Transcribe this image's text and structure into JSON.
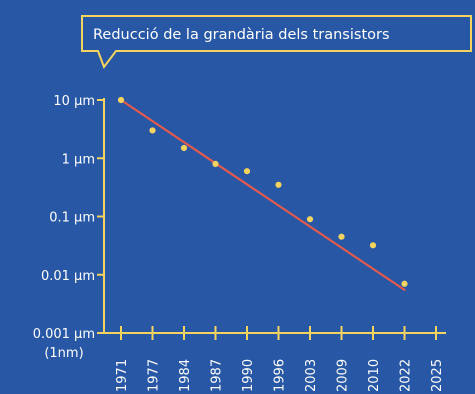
{
  "chart_data": {
    "type": "scatter",
    "title": "Reducció de la grandària dels transistors",
    "xlabel": "",
    "ylabel": "",
    "x_categories": [
      "1971",
      "1977",
      "1984",
      "1987",
      "1990",
      "1996",
      "2003",
      "2009",
      "2010",
      "2022",
      "2025"
    ],
    "y_ticks": [
      {
        "label": "10 µm",
        "value": 10
      },
      {
        "label": "1 µm",
        "value": 1
      },
      {
        "label": "0.1 µm",
        "value": 0.1
      },
      {
        "label": "0.01 µm",
        "value": 0.01
      },
      {
        "label": "0.001 µm",
        "sublabel": "(1nm)",
        "value": 0.001
      }
    ],
    "yscale": "log",
    "ylim": [
      0.001,
      10
    ],
    "series": [
      {
        "type": "scatter",
        "points": [
          {
            "x": "1971",
            "y": 10
          },
          {
            "x": "1977",
            "y": 3
          },
          {
            "x": "1984",
            "y": 1.5
          },
          {
            "x": "1987",
            "y": 0.8
          },
          {
            "x": "1990",
            "y": 0.6
          },
          {
            "x": "1996",
            "y": 0.35
          },
          {
            "x": "2003",
            "y": 0.09
          },
          {
            "x": "2009",
            "y": 0.045
          },
          {
            "x": "2010",
            "y": 0.032
          },
          {
            "x": "2022",
            "y": 0.007
          }
        ]
      },
      {
        "type": "line",
        "points": [
          {
            "x": "1971",
            "y": 10
          },
          {
            "x": "2022",
            "y": 0.0055
          }
        ]
      }
    ],
    "colors": {
      "background": "#2757a5",
      "axis": "#f4d35e",
      "points": "#f4d35e",
      "trendline": "#e05a4f",
      "text": "#ffffff"
    },
    "grid": false
  }
}
